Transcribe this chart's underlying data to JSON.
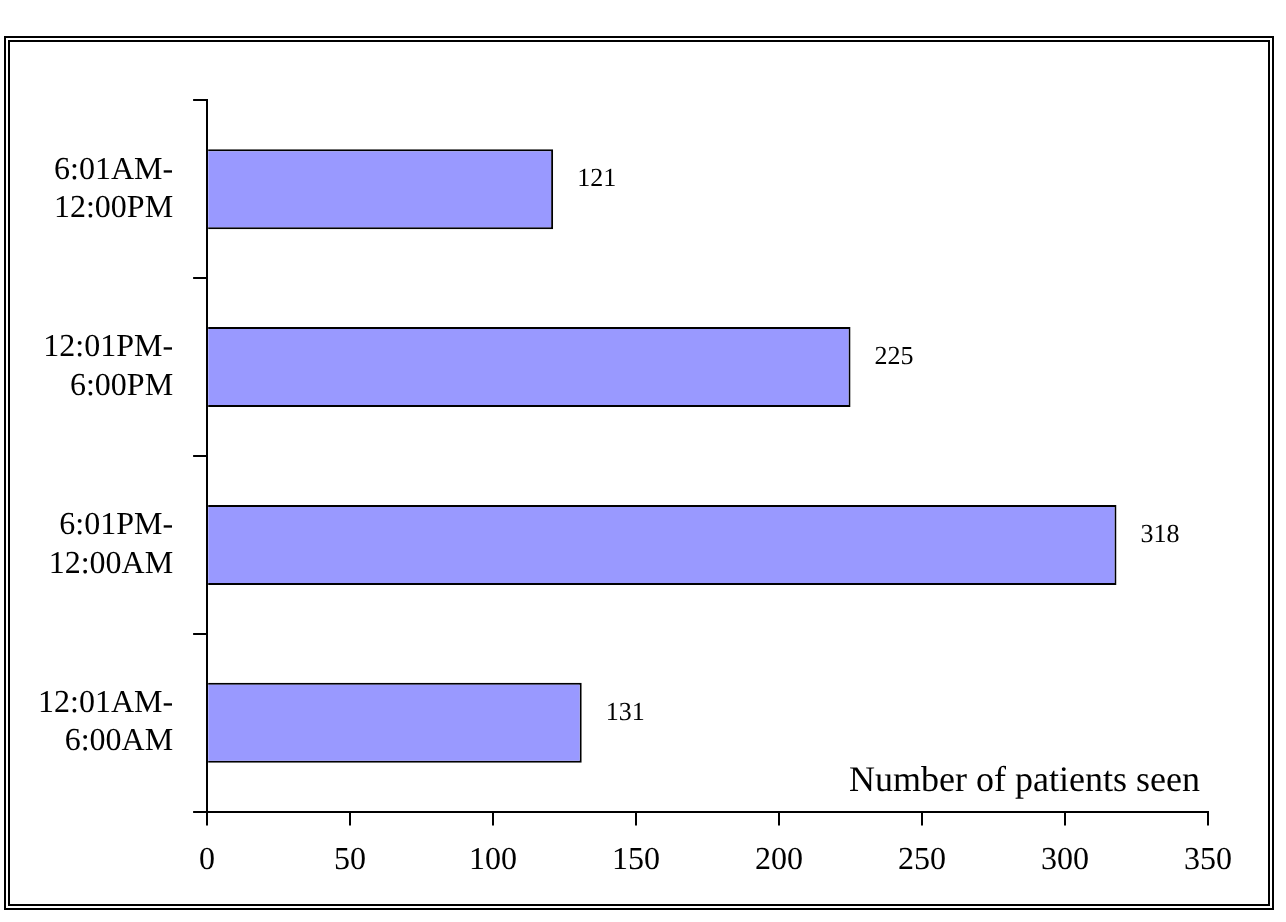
{
  "chart_data": {
    "type": "bar",
    "orientation": "horizontal",
    "categories": [
      "6:01AM-12:00PM",
      "12:01PM-6:00PM",
      "6:01PM-12:00AM",
      "12:01AM-6:00AM"
    ],
    "values": [
      121,
      225,
      318,
      131
    ],
    "color": "#9999ff",
    "xlabel": "Number of patients seen",
    "xlim": [
      0,
      350
    ],
    "xticks": [
      0,
      50,
      100,
      150,
      200,
      250,
      300,
      350
    ],
    "data_labels": true,
    "grid": false,
    "legend": false
  }
}
